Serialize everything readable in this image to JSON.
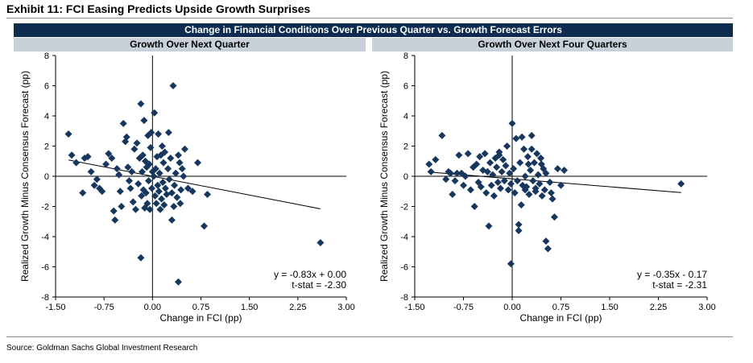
{
  "exhibit": {
    "title": "Exhibit 11: FCI Easing Predicts Upside Growth Surprises",
    "banner": "Change in Financial Conditions Over Previous Quarter vs. Growth Forecast Errors",
    "source": "Source: Goldman Sachs Global Investment Research"
  },
  "colors": {
    "banner_bg": "#0d2c4f",
    "sub_banner_bg": "#c8d0da",
    "marker": "#17375e"
  },
  "chart_data": [
    {
      "type": "scatter",
      "title": "Growth Over Next Quarter",
      "xlabel": "Change in FCI (pp)",
      "ylabel": "Realized Growth Minus Consensus Forecast (pp)",
      "xlim": [
        -1.5,
        3.0
      ],
      "ylim": [
        -8,
        8
      ],
      "x_ticks": [
        "-1.50",
        "-0.75",
        "0.00",
        "0.75",
        "1.50",
        "2.25",
        "3.00"
      ],
      "y_ticks": [
        "8",
        "6",
        "4",
        "2",
        "0",
        "-2",
        "-4",
        "-6",
        "-8"
      ],
      "regression": {
        "slope": -0.83,
        "intercept": 0.0,
        "x_range": [
          -1.3,
          2.6
        ]
      },
      "annotation": [
        "y = -0.83x + 0.00",
        "t-stat = -2.30"
      ],
      "points": [
        [
          -1.3,
          2.8
        ],
        [
          -1.25,
          1.4
        ],
        [
          -1.18,
          0.9
        ],
        [
          -1.05,
          1.2
        ],
        [
          -1.0,
          1.3
        ],
        [
          -1.08,
          -1.1
        ],
        [
          -0.95,
          0.3
        ],
        [
          -0.9,
          -0.6
        ],
        [
          -0.86,
          -0.2
        ],
        [
          -0.82,
          -0.8
        ],
        [
          -0.78,
          -1.0
        ],
        [
          -0.72,
          0.8
        ],
        [
          -0.68,
          1.5
        ],
        [
          -0.63,
          1.2
        ],
        [
          -0.6,
          -2.3
        ],
        [
          -0.58,
          -2.9
        ],
        [
          -0.55,
          0.5
        ],
        [
          -0.52,
          0.1
        ],
        [
          -0.5,
          -1.0
        ],
        [
          -0.48,
          -2.0
        ],
        [
          -0.45,
          3.5
        ],
        [
          -0.42,
          2.3
        ],
        [
          -0.4,
          2.6
        ],
        [
          -0.38,
          0.6
        ],
        [
          -0.36,
          -0.3
        ],
        [
          -0.34,
          -0.8
        ],
        [
          -0.32,
          0.3
        ],
        [
          -0.3,
          -1.7
        ],
        [
          -0.28,
          1.8
        ],
        [
          -0.26,
          -2.2
        ],
        [
          -0.24,
          2.2
        ],
        [
          -0.22,
          -0.5
        ],
        [
          -0.2,
          1.2
        ],
        [
          -0.18,
          4.8
        ],
        [
          -0.17,
          -1.3
        ],
        [
          -0.16,
          0.3
        ],
        [
          -0.15,
          1.4
        ],
        [
          -0.14,
          -0.9
        ],
        [
          -0.13,
          3.7
        ],
        [
          -0.12,
          -2.1
        ],
        [
          -0.11,
          1.0
        ],
        [
          -0.1,
          -1.1
        ],
        [
          -0.09,
          0.6
        ],
        [
          -0.08,
          -1.8
        ],
        [
          -0.07,
          2.7
        ],
        [
          -0.06,
          -0.3
        ],
        [
          -0.05,
          0.8
        ],
        [
          -0.04,
          -2.2
        ],
        [
          -0.03,
          1.9
        ],
        [
          -0.02,
          2.9
        ],
        [
          -0.01,
          -0.8
        ],
        [
          0.0,
          0.3
        ],
        [
          0.02,
          0.0
        ],
        [
          0.03,
          4.2
        ],
        [
          0.04,
          -1.3
        ],
        [
          0.05,
          0.5
        ],
        [
          0.06,
          -1.8
        ],
        [
          0.07,
          1.3
        ],
        [
          0.08,
          -0.6
        ],
        [
          0.09,
          2.8
        ],
        [
          0.1,
          -1.0
        ],
        [
          0.11,
          0.2
        ],
        [
          0.12,
          -2.2
        ],
        [
          0.13,
          1.4
        ],
        [
          0.14,
          -1.5
        ],
        [
          0.15,
          2.0
        ],
        [
          0.16,
          -0.4
        ],
        [
          0.17,
          0.9
        ],
        [
          0.18,
          -1.9
        ],
        [
          0.19,
          1.6
        ],
        [
          0.2,
          -0.8
        ],
        [
          0.22,
          -1.2
        ],
        [
          0.24,
          0.5
        ],
        [
          0.26,
          -0.2
        ],
        [
          0.28,
          1.2
        ],
        [
          0.3,
          -1.1
        ],
        [
          0.32,
          6.0
        ],
        [
          0.34,
          -0.6
        ],
        [
          0.36,
          0.2
        ],
        [
          0.38,
          -1.4
        ],
        [
          0.4,
          1.4
        ],
        [
          0.42,
          0.9
        ],
        [
          0.44,
          -0.9
        ],
        [
          0.46,
          0.5
        ],
        [
          0.48,
          0.0
        ],
        [
          0.3,
          -2.9
        ],
        [
          0.33,
          -2.0
        ],
        [
          0.4,
          -7.0
        ],
        [
          -0.18,
          -5.4
        ],
        [
          0.55,
          -0.8
        ],
        [
          0.62,
          -1.0
        ],
        [
          0.7,
          0.9
        ],
        [
          0.8,
          -3.3
        ],
        [
          0.85,
          -1.2
        ],
        [
          2.6,
          -4.4
        ],
        [
          0.25,
          2.9
        ],
        [
          0.43,
          -1.8
        ],
        [
          0.5,
          1.8
        ]
      ]
    },
    {
      "type": "scatter",
      "title": "Growth Over Next Four Quarters",
      "xlabel": "Change in FCI (pp)",
      "ylabel": "Realized Growth Minus Consensus Forecast (pp)",
      "xlim": [
        -1.5,
        3.0
      ],
      "ylim": [
        -8,
        8
      ],
      "x_ticks": [
        "-1.50",
        "-0.75",
        "0.00",
        "0.75",
        "1.50",
        "2.25",
        "3.00"
      ],
      "y_ticks": [
        "8",
        "6",
        "4",
        "2",
        "0",
        "-2",
        "-4",
        "-6",
        "-8"
      ],
      "regression": {
        "slope": -0.35,
        "intercept": -0.17,
        "x_range": [
          -1.3,
          2.6
        ]
      },
      "annotation": [
        "y = -0.35x - 0.17",
        "t-stat = -2.31"
      ],
      "points": [
        [
          -1.28,
          0.8
        ],
        [
          -1.25,
          0.3
        ],
        [
          -1.18,
          1.1
        ],
        [
          -1.08,
          2.7
        ],
        [
          -1.02,
          -0.2
        ],
        [
          -0.98,
          0.3
        ],
        [
          -0.95,
          0.2
        ],
        [
          -0.92,
          -1.2
        ],
        [
          -0.88,
          -0.3
        ],
        [
          -0.85,
          0.2
        ],
        [
          -0.82,
          1.4
        ],
        [
          -0.78,
          0.2
        ],
        [
          -0.75,
          -0.6
        ],
        [
          -0.72,
          0.0
        ],
        [
          -0.68,
          1.5
        ],
        [
          -0.64,
          -0.9
        ],
        [
          -0.6,
          0.6
        ],
        [
          -0.58,
          -2.0
        ],
        [
          -0.55,
          0.8
        ],
        [
          -0.52,
          -0.4
        ],
        [
          -0.5,
          1.3
        ],
        [
          -0.48,
          -0.7
        ],
        [
          -0.45,
          0.4
        ],
        [
          -0.42,
          1.5
        ],
        [
          -0.4,
          -1.1
        ],
        [
          -0.38,
          0.3
        ],
        [
          -0.36,
          -3.3
        ],
        [
          -0.34,
          0.9
        ],
        [
          -0.32,
          -0.6
        ],
        [
          -0.3,
          0.1
        ],
        [
          -0.28,
          -1.3
        ],
        [
          -0.26,
          1.2
        ],
        [
          -0.24,
          0.6
        ],
        [
          -0.22,
          -0.4
        ],
        [
          -0.2,
          1.6
        ],
        [
          -0.18,
          -0.8
        ],
        [
          -0.16,
          0.3
        ],
        [
          -0.14,
          1.1
        ],
        [
          -0.12,
          -0.3
        ],
        [
          -0.1,
          0.7
        ],
        [
          -0.08,
          2.0
        ],
        [
          -0.06,
          -0.9
        ],
        [
          -0.04,
          0.2
        ],
        [
          -0.02,
          -0.5
        ],
        [
          0.0,
          3.5
        ],
        [
          0.02,
          0.5
        ],
        [
          0.04,
          -1.1
        ],
        [
          0.06,
          2.5
        ],
        [
          0.08,
          -0.3
        ],
        [
          0.1,
          -3.2
        ],
        [
          0.12,
          0.9
        ],
        [
          0.14,
          -1.9
        ],
        [
          0.16,
          -0.6
        ],
        [
          0.18,
          1.8
        ],
        [
          0.2,
          0.0
        ],
        [
          0.22,
          -0.7
        ],
        [
          0.24,
          1.3
        ],
        [
          0.26,
          -1.2
        ],
        [
          0.28,
          0.4
        ],
        [
          0.3,
          2.7
        ],
        [
          0.32,
          -0.3
        ],
        [
          0.34,
          0.9
        ],
        [
          0.36,
          -1.0
        ],
        [
          0.38,
          1.5
        ],
        [
          0.4,
          0.1
        ],
        [
          0.42,
          -0.5
        ],
        [
          0.44,
          1.2
        ],
        [
          0.46,
          -1.3
        ],
        [
          0.48,
          0.5
        ],
        [
          0.5,
          -0.9
        ],
        [
          0.52,
          -4.3
        ],
        [
          0.55,
          -4.8
        ],
        [
          0.58,
          -0.4
        ],
        [
          0.62,
          -1.5
        ],
        [
          0.65,
          -2.7
        ],
        [
          0.7,
          0.5
        ],
        [
          0.75,
          -0.6
        ],
        [
          0.8,
          0.4
        ],
        [
          -0.02,
          -5.8
        ],
        [
          0.1,
          -3.6
        ],
        [
          0.2,
          -0.9
        ],
        [
          0.3,
          1.8
        ],
        [
          0.36,
          -0.8
        ],
        [
          0.45,
          0.8
        ],
        [
          0.52,
          0.2
        ],
        [
          0.6,
          -1.1
        ],
        [
          2.6,
          -0.5
        ],
        [
          -0.2,
          1.4
        ],
        [
          0.15,
          2.6
        ],
        [
          0.25,
          0.8
        ]
      ]
    }
  ]
}
